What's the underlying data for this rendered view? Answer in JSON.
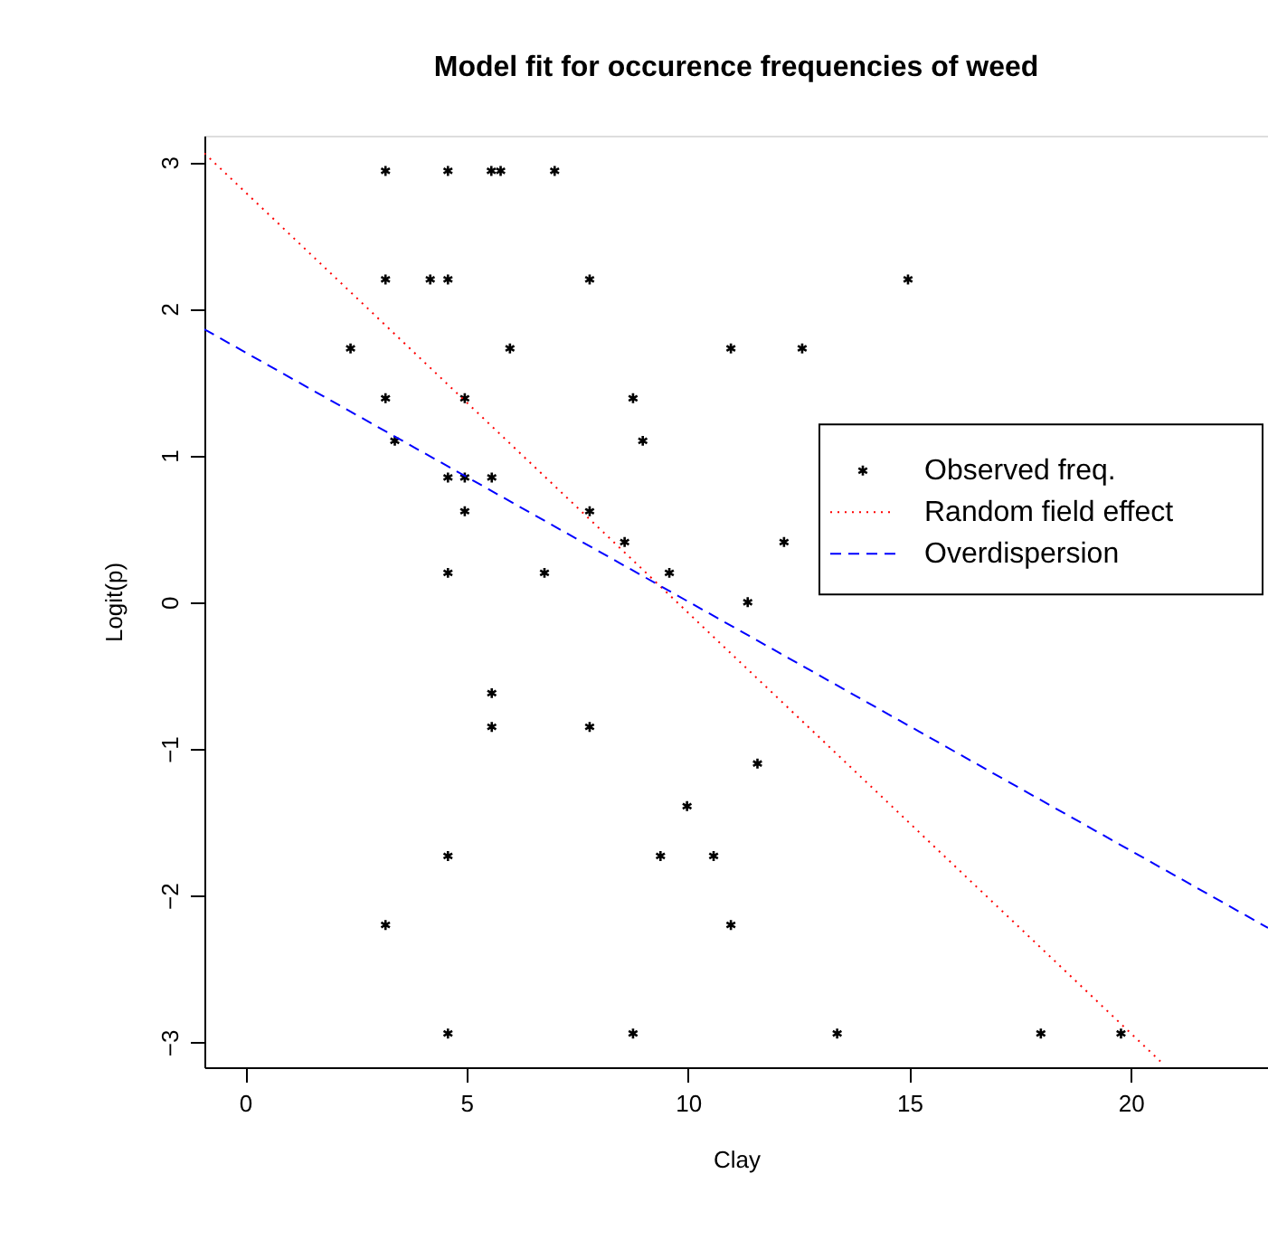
{
  "chart_data": {
    "type": "scatter",
    "title": "Model fit for occurence frequencies of weed",
    "xlabel": "Clay",
    "ylabel": "Logit(p)",
    "xlim": [
      -0.92,
      23.1
    ],
    "ylim": [
      -3.17,
      3.18
    ],
    "xticks": [
      0,
      5,
      10,
      15,
      20
    ],
    "yticks": [
      -3,
      -2,
      -1,
      0,
      1,
      2,
      3
    ],
    "grid": false,
    "legend": "right",
    "series": [
      {
        "name": "Observed freq.",
        "color": "#000000",
        "marker": "cross",
        "x": [
          3.17,
          4.58,
          5.56,
          5.77,
          6.99,
          3.17,
          4.18,
          4.58,
          7.78,
          14.97,
          2.38,
          5.98,
          10.97,
          12.58,
          3.17,
          4.96,
          8.76,
          3.38,
          8.98,
          4.58,
          4.96,
          5.57,
          4.96,
          7.78,
          8.57,
          12.17,
          4.58,
          6.76,
          9.58,
          11.35,
          5.57,
          5.57,
          7.78,
          11.57,
          9.98,
          4.58,
          9.38,
          10.58,
          3.17,
          10.97,
          4.58,
          8.76,
          13.37,
          17.97,
          19.78
        ],
        "values": [
          2.94,
          2.94,
          2.94,
          2.94,
          2.94,
          2.2,
          2.2,
          2.2,
          2.2,
          2.2,
          1.73,
          1.73,
          1.73,
          1.73,
          1.39,
          1.39,
          1.39,
          1.1,
          1.1,
          0.85,
          0.85,
          0.85,
          0.62,
          0.62,
          0.41,
          0.41,
          0.2,
          0.2,
          0.2,
          0.0,
          -0.62,
          -0.85,
          -0.85,
          -1.1,
          -1.39,
          -1.73,
          -1.73,
          -1.73,
          -2.2,
          -2.2,
          -2.94,
          -2.94,
          -2.94,
          -2.94,
          -2.94
        ]
      },
      {
        "name": "Random field effect",
        "color": "#ff0000",
        "type": "line",
        "line_style": "dotted",
        "x": [
          -0.92,
          20.67
        ],
        "values": [
          3.06,
          -3.13
        ]
      },
      {
        "name": "Overdispersion",
        "color": "#0000ff",
        "type": "line",
        "line_style": "dashed",
        "x": [
          -0.92,
          23.1
        ],
        "values": [
          1.86,
          -2.22
        ]
      }
    ]
  }
}
